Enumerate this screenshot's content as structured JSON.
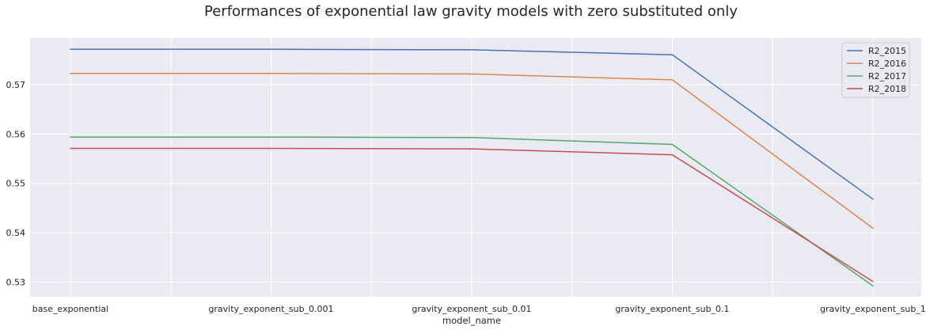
{
  "chart_data": {
    "type": "line",
    "title": "Performances of exponential law gravity models with zero substituted only",
    "xlabel": "model_name",
    "ylabel": "",
    "categories": [
      "base_exponential",
      "gravity_exponent_sub_0.001",
      "gravity_exponent_sub_0.01",
      "gravity_exponent_sub_0.1",
      "gravity_exponent_sub_1"
    ],
    "ylim": [
      0.527,
      0.5795
    ],
    "yticks": [
      "0.53",
      "0.54",
      "0.55",
      "0.56",
      "0.57"
    ],
    "grid": true,
    "legend_position": "top-right",
    "background_color": "#eaeaf2",
    "grid_color": "#ffffff",
    "series": [
      {
        "name": "R2_2015",
        "color": "#4c72b0",
        "values": [
          0.5772,
          0.5772,
          0.5771,
          0.5761,
          0.5468
        ]
      },
      {
        "name": "R2_2016",
        "color": "#dd8452",
        "values": [
          0.5723,
          0.5723,
          0.5722,
          0.571,
          0.5409
        ]
      },
      {
        "name": "R2_2017",
        "color": "#55a868",
        "values": [
          0.5594,
          0.5594,
          0.5593,
          0.5579,
          0.5292
        ]
      },
      {
        "name": "R2_2018",
        "color": "#c44e52",
        "values": [
          0.5571,
          0.5571,
          0.557,
          0.5558,
          0.5301
        ]
      }
    ]
  }
}
